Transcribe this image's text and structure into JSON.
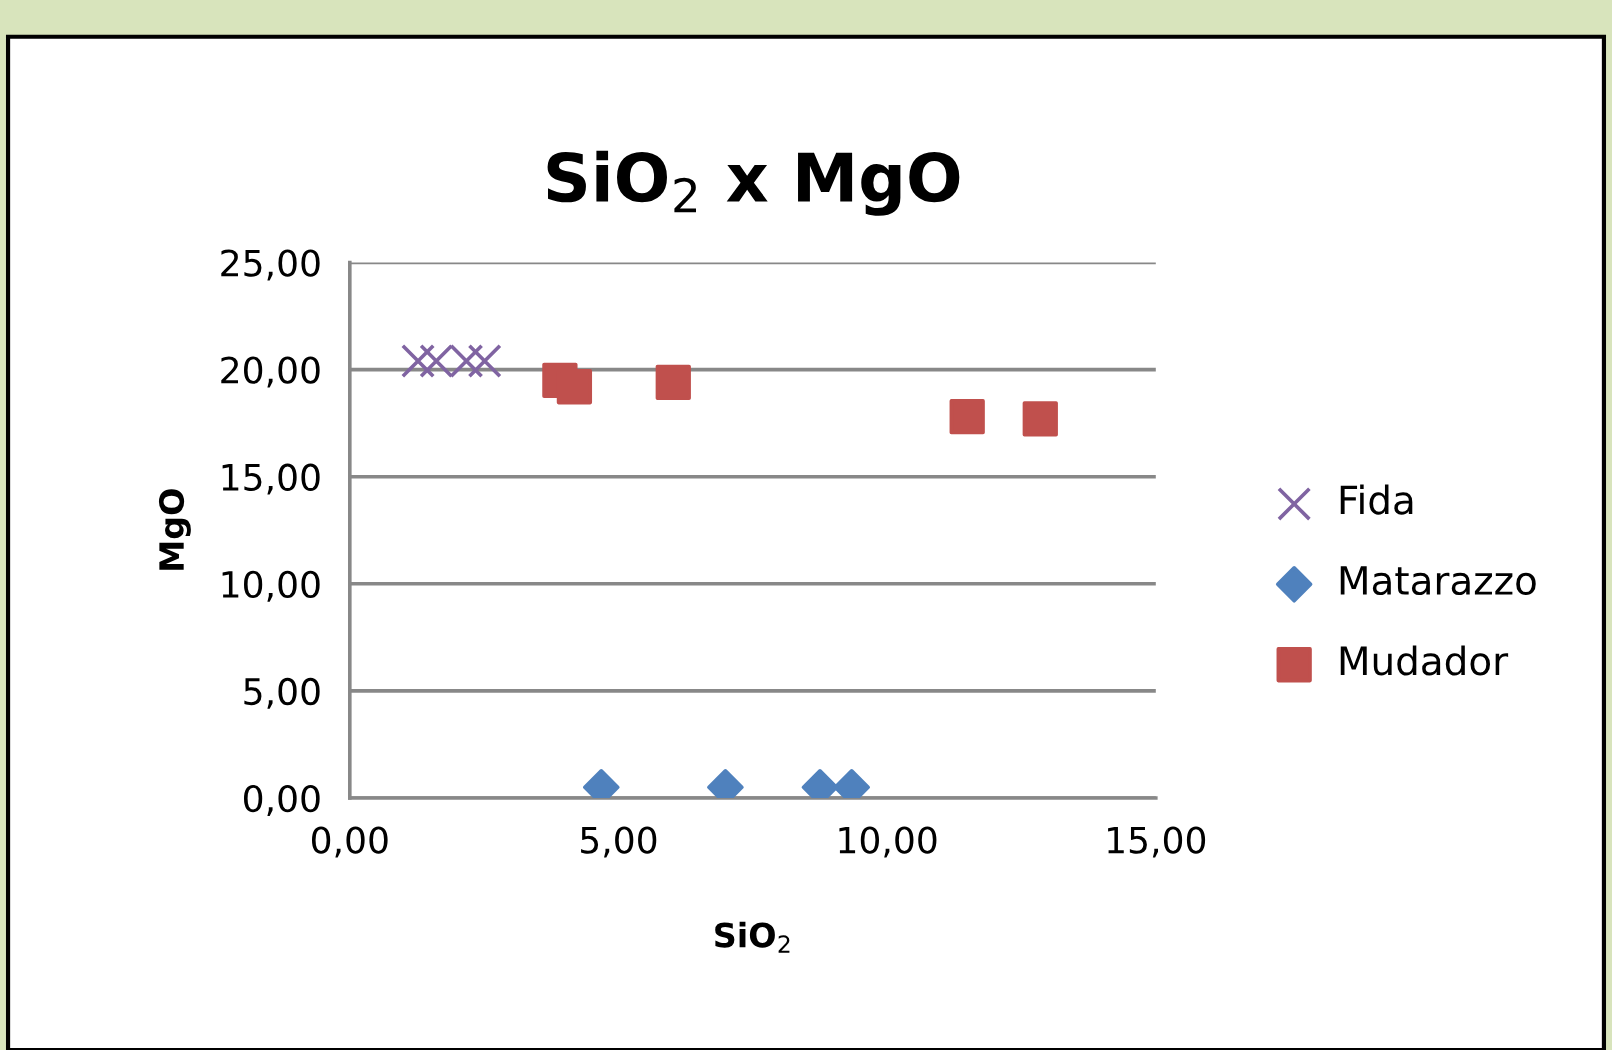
{
  "chart_data": {
    "type": "scatter",
    "title": "SiO$_{2}$ x MgO",
    "xlabel": "SiO$_{2}$",
    "ylabel": "MgO",
    "xlim": [
      0,
      15
    ],
    "xticks": [
      {
        "value": 0,
        "label": "0,00"
      },
      {
        "value": 5,
        "label": "5,00"
      },
      {
        "value": 10,
        "label": "10,00"
      },
      {
        "value": 15,
        "label": "15,00"
      }
    ],
    "ylim": [
      0,
      25
    ],
    "yticks": [
      {
        "value": 0,
        "label": "0,00"
      },
      {
        "value": 5,
        "label": "5,00"
      },
      {
        "value": 10,
        "label": "10,00"
      },
      {
        "value": 15,
        "label": "15,00"
      },
      {
        "value": 20,
        "label": "20,00"
      },
      {
        "value": 25,
        "label": "25,00"
      }
    ],
    "grid": "y",
    "legend": "right",
    "series": [
      {
        "name": "Fida",
        "color": "#8064a2",
        "marker": "cross",
        "x": [
          1.27,
          1.61,
          2.17,
          2.51
        ],
        "values": [
          20.4,
          20.4,
          20.4,
          20.4
        ]
      },
      {
        "name": "Matarazzo",
        "color": "#4f81bd",
        "marker": "diamond",
        "x": [
          4.68,
          6.99,
          8.75,
          9.34
        ],
        "values": [
          0.5,
          0.5,
          0.5,
          0.5
        ]
      },
      {
        "name": "Mudador",
        "color": "#c0504d",
        "marker": "square",
        "x": [
          3.91,
          4.18,
          6.02,
          11.49,
          12.85
        ],
        "values": [
          19.5,
          19.2,
          19.4,
          17.8,
          17.7
        ]
      }
    ]
  }
}
